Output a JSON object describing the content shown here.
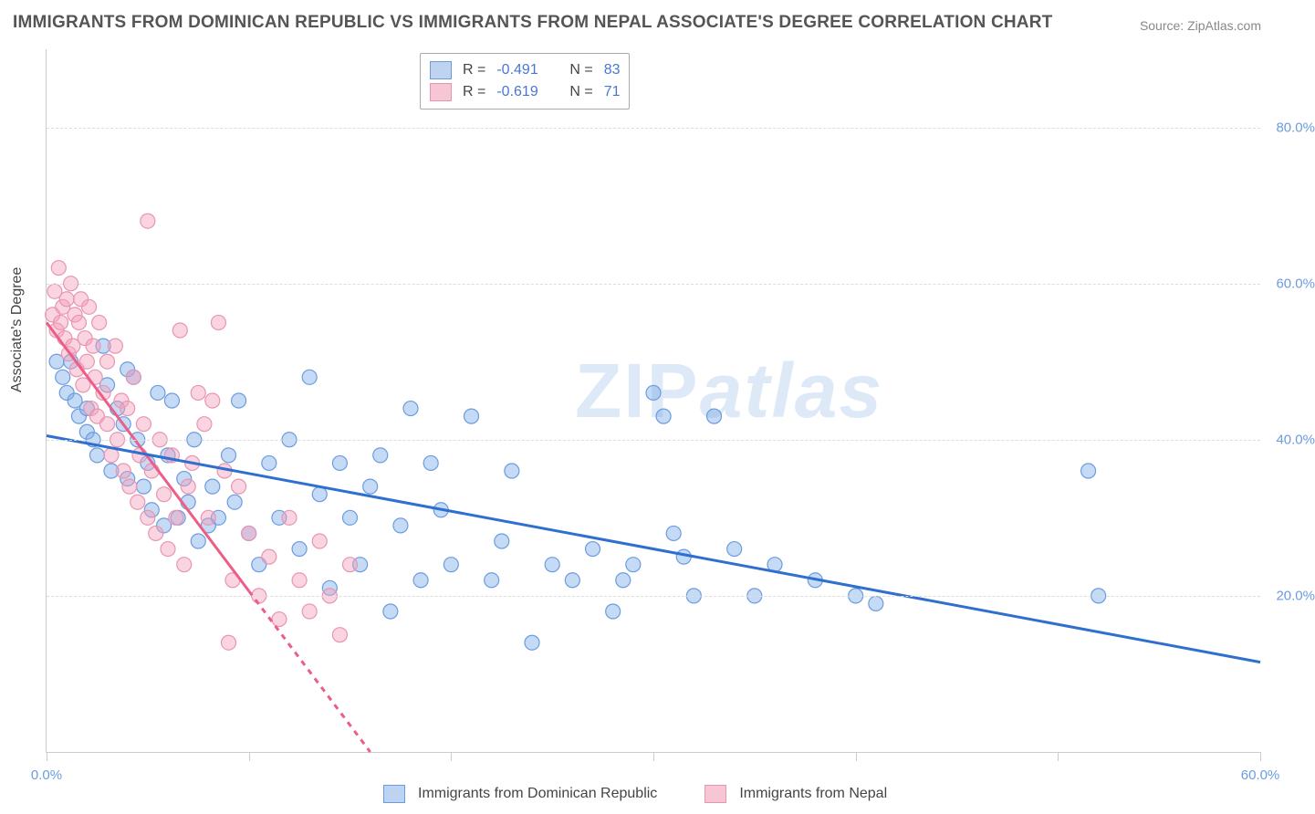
{
  "title": "IMMIGRANTS FROM DOMINICAN REPUBLIC VS IMMIGRANTS FROM NEPAL ASSOCIATE'S DEGREE CORRELATION CHART",
  "source": "Source: ZipAtlas.com",
  "watermark": "ZIPatlas",
  "yaxis_label": "Associate's Degree",
  "chart": {
    "type": "scatter",
    "xlim": [
      0,
      60
    ],
    "ylim": [
      0,
      90
    ],
    "x_ticks": [
      0,
      10,
      20,
      30,
      40,
      50,
      60
    ],
    "x_tick_labels": [
      "0.0%",
      "",
      "",
      "",
      "",
      "",
      "60.0%"
    ],
    "y_gridlines": [
      20,
      40,
      60,
      80
    ],
    "y_tick_labels": [
      "20.0%",
      "40.0%",
      "60.0%",
      "80.0%"
    ],
    "grid_color": "#dddddd",
    "axis_color": "#cccccc",
    "background_color": "#ffffff",
    "label_color": "#6b9cdf",
    "series": [
      {
        "name": "Immigrants from Dominican Republic",
        "marker_fill": "rgba(126,172,231,0.45)",
        "marker_stroke": "#6b9cdf",
        "swatch_bg": "#bdd3ef",
        "swatch_border": "#6b9cdf",
        "marker_radius": 8,
        "R": "-0.491",
        "N": "83",
        "trend": {
          "x1": 0,
          "y1": 40.5,
          "x2": 60,
          "y2": 11.5,
          "color": "#2f6fd0",
          "width": 3
        },
        "points": [
          [
            0.5,
            50
          ],
          [
            0.8,
            48
          ],
          [
            1.0,
            46
          ],
          [
            1.2,
            50
          ],
          [
            1.4,
            45
          ],
          [
            1.6,
            43
          ],
          [
            2.0,
            44
          ],
          [
            2.0,
            41
          ],
          [
            2.3,
            40
          ],
          [
            2.5,
            38
          ],
          [
            2.8,
            52
          ],
          [
            3.0,
            47
          ],
          [
            3.2,
            36
          ],
          [
            3.5,
            44
          ],
          [
            3.8,
            42
          ],
          [
            4.0,
            49
          ],
          [
            4.0,
            35
          ],
          [
            4.3,
            48
          ],
          [
            4.5,
            40
          ],
          [
            4.8,
            34
          ],
          [
            5.0,
            37
          ],
          [
            5.2,
            31
          ],
          [
            5.5,
            46
          ],
          [
            5.8,
            29
          ],
          [
            6.0,
            38
          ],
          [
            6.2,
            45
          ],
          [
            6.5,
            30
          ],
          [
            6.8,
            35
          ],
          [
            7.0,
            32
          ],
          [
            7.3,
            40
          ],
          [
            7.5,
            27
          ],
          [
            8.0,
            29
          ],
          [
            8.2,
            34
          ],
          [
            8.5,
            30
          ],
          [
            9.0,
            38
          ],
          [
            9.3,
            32
          ],
          [
            9.5,
            45
          ],
          [
            10.0,
            28
          ],
          [
            10.5,
            24
          ],
          [
            11.0,
            37
          ],
          [
            11.5,
            30
          ],
          [
            12.0,
            40
          ],
          [
            12.5,
            26
          ],
          [
            13.0,
            48
          ],
          [
            13.5,
            33
          ],
          [
            14.0,
            21
          ],
          [
            14.5,
            37
          ],
          [
            15.0,
            30
          ],
          [
            15.5,
            24
          ],
          [
            16.0,
            34
          ],
          [
            16.5,
            38
          ],
          [
            17.0,
            18
          ],
          [
            17.5,
            29
          ],
          [
            18.0,
            44
          ],
          [
            18.5,
            22
          ],
          [
            19.0,
            37
          ],
          [
            19.5,
            31
          ],
          [
            20.0,
            24
          ],
          [
            21.0,
            43
          ],
          [
            22.0,
            22
          ],
          [
            22.5,
            27
          ],
          [
            23.0,
            36
          ],
          [
            24.0,
            14
          ],
          [
            25.0,
            24
          ],
          [
            26.0,
            22
          ],
          [
            27.0,
            26
          ],
          [
            28.0,
            18
          ],
          [
            28.5,
            22
          ],
          [
            29.0,
            24
          ],
          [
            30.0,
            46
          ],
          [
            30.5,
            43
          ],
          [
            31.0,
            28
          ],
          [
            31.5,
            25
          ],
          [
            32.0,
            20
          ],
          [
            33.0,
            43
          ],
          [
            34.0,
            26
          ],
          [
            35.0,
            20
          ],
          [
            36.0,
            24
          ],
          [
            38.0,
            22
          ],
          [
            40.0,
            20
          ],
          [
            41.0,
            19
          ],
          [
            51.5,
            36
          ],
          [
            52.0,
            20
          ]
        ]
      },
      {
        "name": "Immigrants from Nepal",
        "marker_fill": "rgba(243,160,186,0.45)",
        "marker_stroke": "#e895b2",
        "swatch_bg": "#f6c6d5",
        "swatch_border": "#e895b2",
        "marker_radius": 8,
        "R": "-0.619",
        "N": "71",
        "trend": {
          "x1": 0,
          "y1": 55,
          "x2": 16,
          "y2": 0,
          "color": "#ec5e86",
          "width": 3,
          "dash_after": 10
        },
        "points": [
          [
            0.3,
            56
          ],
          [
            0.4,
            59
          ],
          [
            0.5,
            54
          ],
          [
            0.6,
            62
          ],
          [
            0.7,
            55
          ],
          [
            0.8,
            57
          ],
          [
            0.9,
            53
          ],
          [
            1.0,
            58
          ],
          [
            1.1,
            51
          ],
          [
            1.2,
            60
          ],
          [
            1.3,
            52
          ],
          [
            1.4,
            56
          ],
          [
            1.5,
            49
          ],
          [
            1.6,
            55
          ],
          [
            1.7,
            58
          ],
          [
            1.8,
            47
          ],
          [
            1.9,
            53
          ],
          [
            2.0,
            50
          ],
          [
            2.1,
            57
          ],
          [
            2.2,
            44
          ],
          [
            2.3,
            52
          ],
          [
            2.4,
            48
          ],
          [
            2.5,
            43
          ],
          [
            2.6,
            55
          ],
          [
            2.8,
            46
          ],
          [
            3.0,
            50
          ],
          [
            3.0,
            42
          ],
          [
            3.2,
            38
          ],
          [
            3.4,
            52
          ],
          [
            3.5,
            40
          ],
          [
            3.7,
            45
          ],
          [
            3.8,
            36
          ],
          [
            4.0,
            44
          ],
          [
            4.1,
            34
          ],
          [
            4.3,
            48
          ],
          [
            4.5,
            32
          ],
          [
            4.6,
            38
          ],
          [
            4.8,
            42
          ],
          [
            5.0,
            68
          ],
          [
            5.0,
            30
          ],
          [
            5.2,
            36
          ],
          [
            5.4,
            28
          ],
          [
            5.6,
            40
          ],
          [
            5.8,
            33
          ],
          [
            6.0,
            26
          ],
          [
            6.2,
            38
          ],
          [
            6.4,
            30
          ],
          [
            6.6,
            54
          ],
          [
            6.8,
            24
          ],
          [
            7.0,
            34
          ],
          [
            7.2,
            37
          ],
          [
            7.5,
            46
          ],
          [
            7.8,
            42
          ],
          [
            8.0,
            30
          ],
          [
            8.2,
            45
          ],
          [
            8.5,
            55
          ],
          [
            8.8,
            36
          ],
          [
            9.0,
            14
          ],
          [
            9.2,
            22
          ],
          [
            9.5,
            34
          ],
          [
            10.0,
            28
          ],
          [
            10.5,
            20
          ],
          [
            11.0,
            25
          ],
          [
            11.5,
            17
          ],
          [
            12.0,
            30
          ],
          [
            12.5,
            22
          ],
          [
            13.0,
            18
          ],
          [
            13.5,
            27
          ],
          [
            14.0,
            20
          ],
          [
            14.5,
            15
          ],
          [
            15.0,
            24
          ]
        ]
      }
    ],
    "legend_top": {
      "r_label": "R =",
      "n_label": "N ="
    },
    "bottom_legend_gap": 14
  }
}
